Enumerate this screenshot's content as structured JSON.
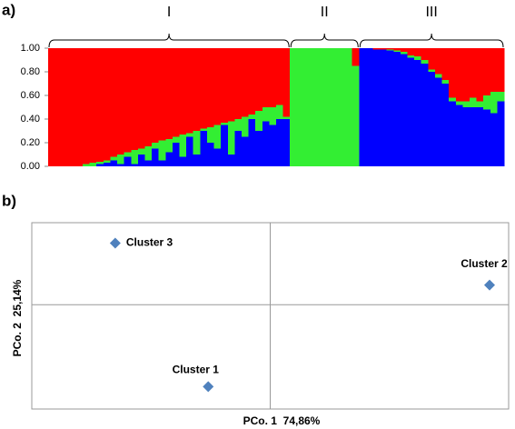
{
  "chart_data": [
    {
      "type": "stacked_bar",
      "panel": "a)",
      "categories": [
        null,
        null,
        null,
        null,
        null,
        null,
        null,
        null,
        null,
        null,
        null,
        null,
        null,
        null,
        null,
        null,
        null,
        null,
        null,
        null,
        null,
        null,
        null,
        null,
        null,
        null,
        null,
        null,
        null,
        null,
        null,
        null,
        null,
        null,
        null,
        null,
        null,
        null,
        null,
        null,
        null,
        null,
        null,
        null,
        null,
        null,
        null,
        null,
        null,
        null,
        null,
        null,
        null,
        null,
        null,
        null,
        null,
        null,
        null,
        null,
        null,
        null,
        null,
        null,
        null,
        null
      ],
      "groups": [
        {
          "label": "I",
          "count": 35
        },
        {
          "label": "II",
          "count": 10
        },
        {
          "label": "III",
          "count": 21
        }
      ],
      "series": [
        {
          "color": "#0000ff",
          "values": [
            0,
            0,
            0,
            0,
            0,
            0,
            0,
            0.02,
            0.03,
            0.05,
            0.02,
            0.08,
            0.02,
            0.1,
            0.05,
            0.15,
            0.05,
            0.12,
            0.2,
            0.08,
            0.25,
            0.1,
            0.3,
            0.2,
            0.15,
            0.35,
            0.1,
            0.3,
            0.25,
            0.4,
            0.3,
            0.38,
            0.35,
            0.4,
            0.4,
            0,
            0,
            0,
            0,
            0,
            0,
            0,
            0,
            0,
            0,
            1,
            1,
            0.99,
            0.99,
            0.98,
            0.97,
            0.95,
            0.92,
            0.9,
            0.87,
            0.8,
            0.75,
            0.7,
            0.55,
            0.52,
            0.5,
            0.5,
            0.5,
            0.48,
            0.45,
            0.55
          ]
        },
        {
          "color": "#33ee33",
          "values": [
            0,
            0,
            0,
            0,
            0,
            0.02,
            0.03,
            0.02,
            0.02,
            0.03,
            0.08,
            0.04,
            0.12,
            0.05,
            0.12,
            0.05,
            0.17,
            0.11,
            0.05,
            0.19,
            0.03,
            0.2,
            0.02,
            0.13,
            0.2,
            0.02,
            0.28,
            0.1,
            0.17,
            0.04,
            0.17,
            0.12,
            0.15,
            0.12,
            0.02,
            1,
            1,
            1,
            1,
            1,
            1,
            1,
            1,
            1,
            0.85,
            0,
            0,
            0,
            0,
            0.01,
            0.01,
            0.02,
            0.02,
            0.03,
            0.03,
            0.02,
            0.03,
            0.03,
            0.03,
            0.03,
            0.05,
            0.08,
            0.05,
            0.12,
            0.18,
            0.08
          ]
        },
        {
          "color": "#ff0000",
          "values": [
            1,
            1,
            1,
            1,
            1,
            0.98,
            0.97,
            0.96,
            0.95,
            0.92,
            0.9,
            0.88,
            0.86,
            0.85,
            0.83,
            0.8,
            0.78,
            0.77,
            0.75,
            0.73,
            0.72,
            0.7,
            0.68,
            0.67,
            0.65,
            0.63,
            0.62,
            0.6,
            0.58,
            0.56,
            0.53,
            0.5,
            0.5,
            0.48,
            0.58,
            0,
            0,
            0,
            0,
            0,
            0,
            0,
            0,
            0,
            0.15,
            0,
            0,
            0.01,
            0.01,
            0.01,
            0.02,
            0.03,
            0.06,
            0.07,
            0.1,
            0.18,
            0.22,
            0.27,
            0.42,
            0.45,
            0.45,
            0.42,
            0.45,
            0.4,
            0.37,
            0.37
          ]
        }
      ],
      "ylim": [
        0,
        1
      ],
      "yticks": [
        {
          "value": 0,
          "label": "0.00"
        },
        {
          "value": 0.2,
          "label": "0.20"
        },
        {
          "value": 0.4,
          "label": "0.40"
        },
        {
          "value": 0.6,
          "label": "0.60"
        },
        {
          "value": 0.8,
          "label": "0.80"
        },
        {
          "value": 1,
          "label": "1.00"
        }
      ]
    },
    {
      "type": "scatter",
      "panel": "b)",
      "x_label": "PCo. 1  74,86%",
      "y_label": "PCo. 2  25,14%",
      "labels": [
        "Cluster 3",
        "Cluster 2",
        "Cluster 1"
      ],
      "x": [
        -0.65,
        0.92,
        -0.26
      ],
      "y": [
        0.66,
        0.21,
        -0.88
      ],
      "color": "#4f81bd",
      "xlim": [
        -1,
        1
      ],
      "ylim": [
        -1.12,
        0.88
      ]
    }
  ]
}
